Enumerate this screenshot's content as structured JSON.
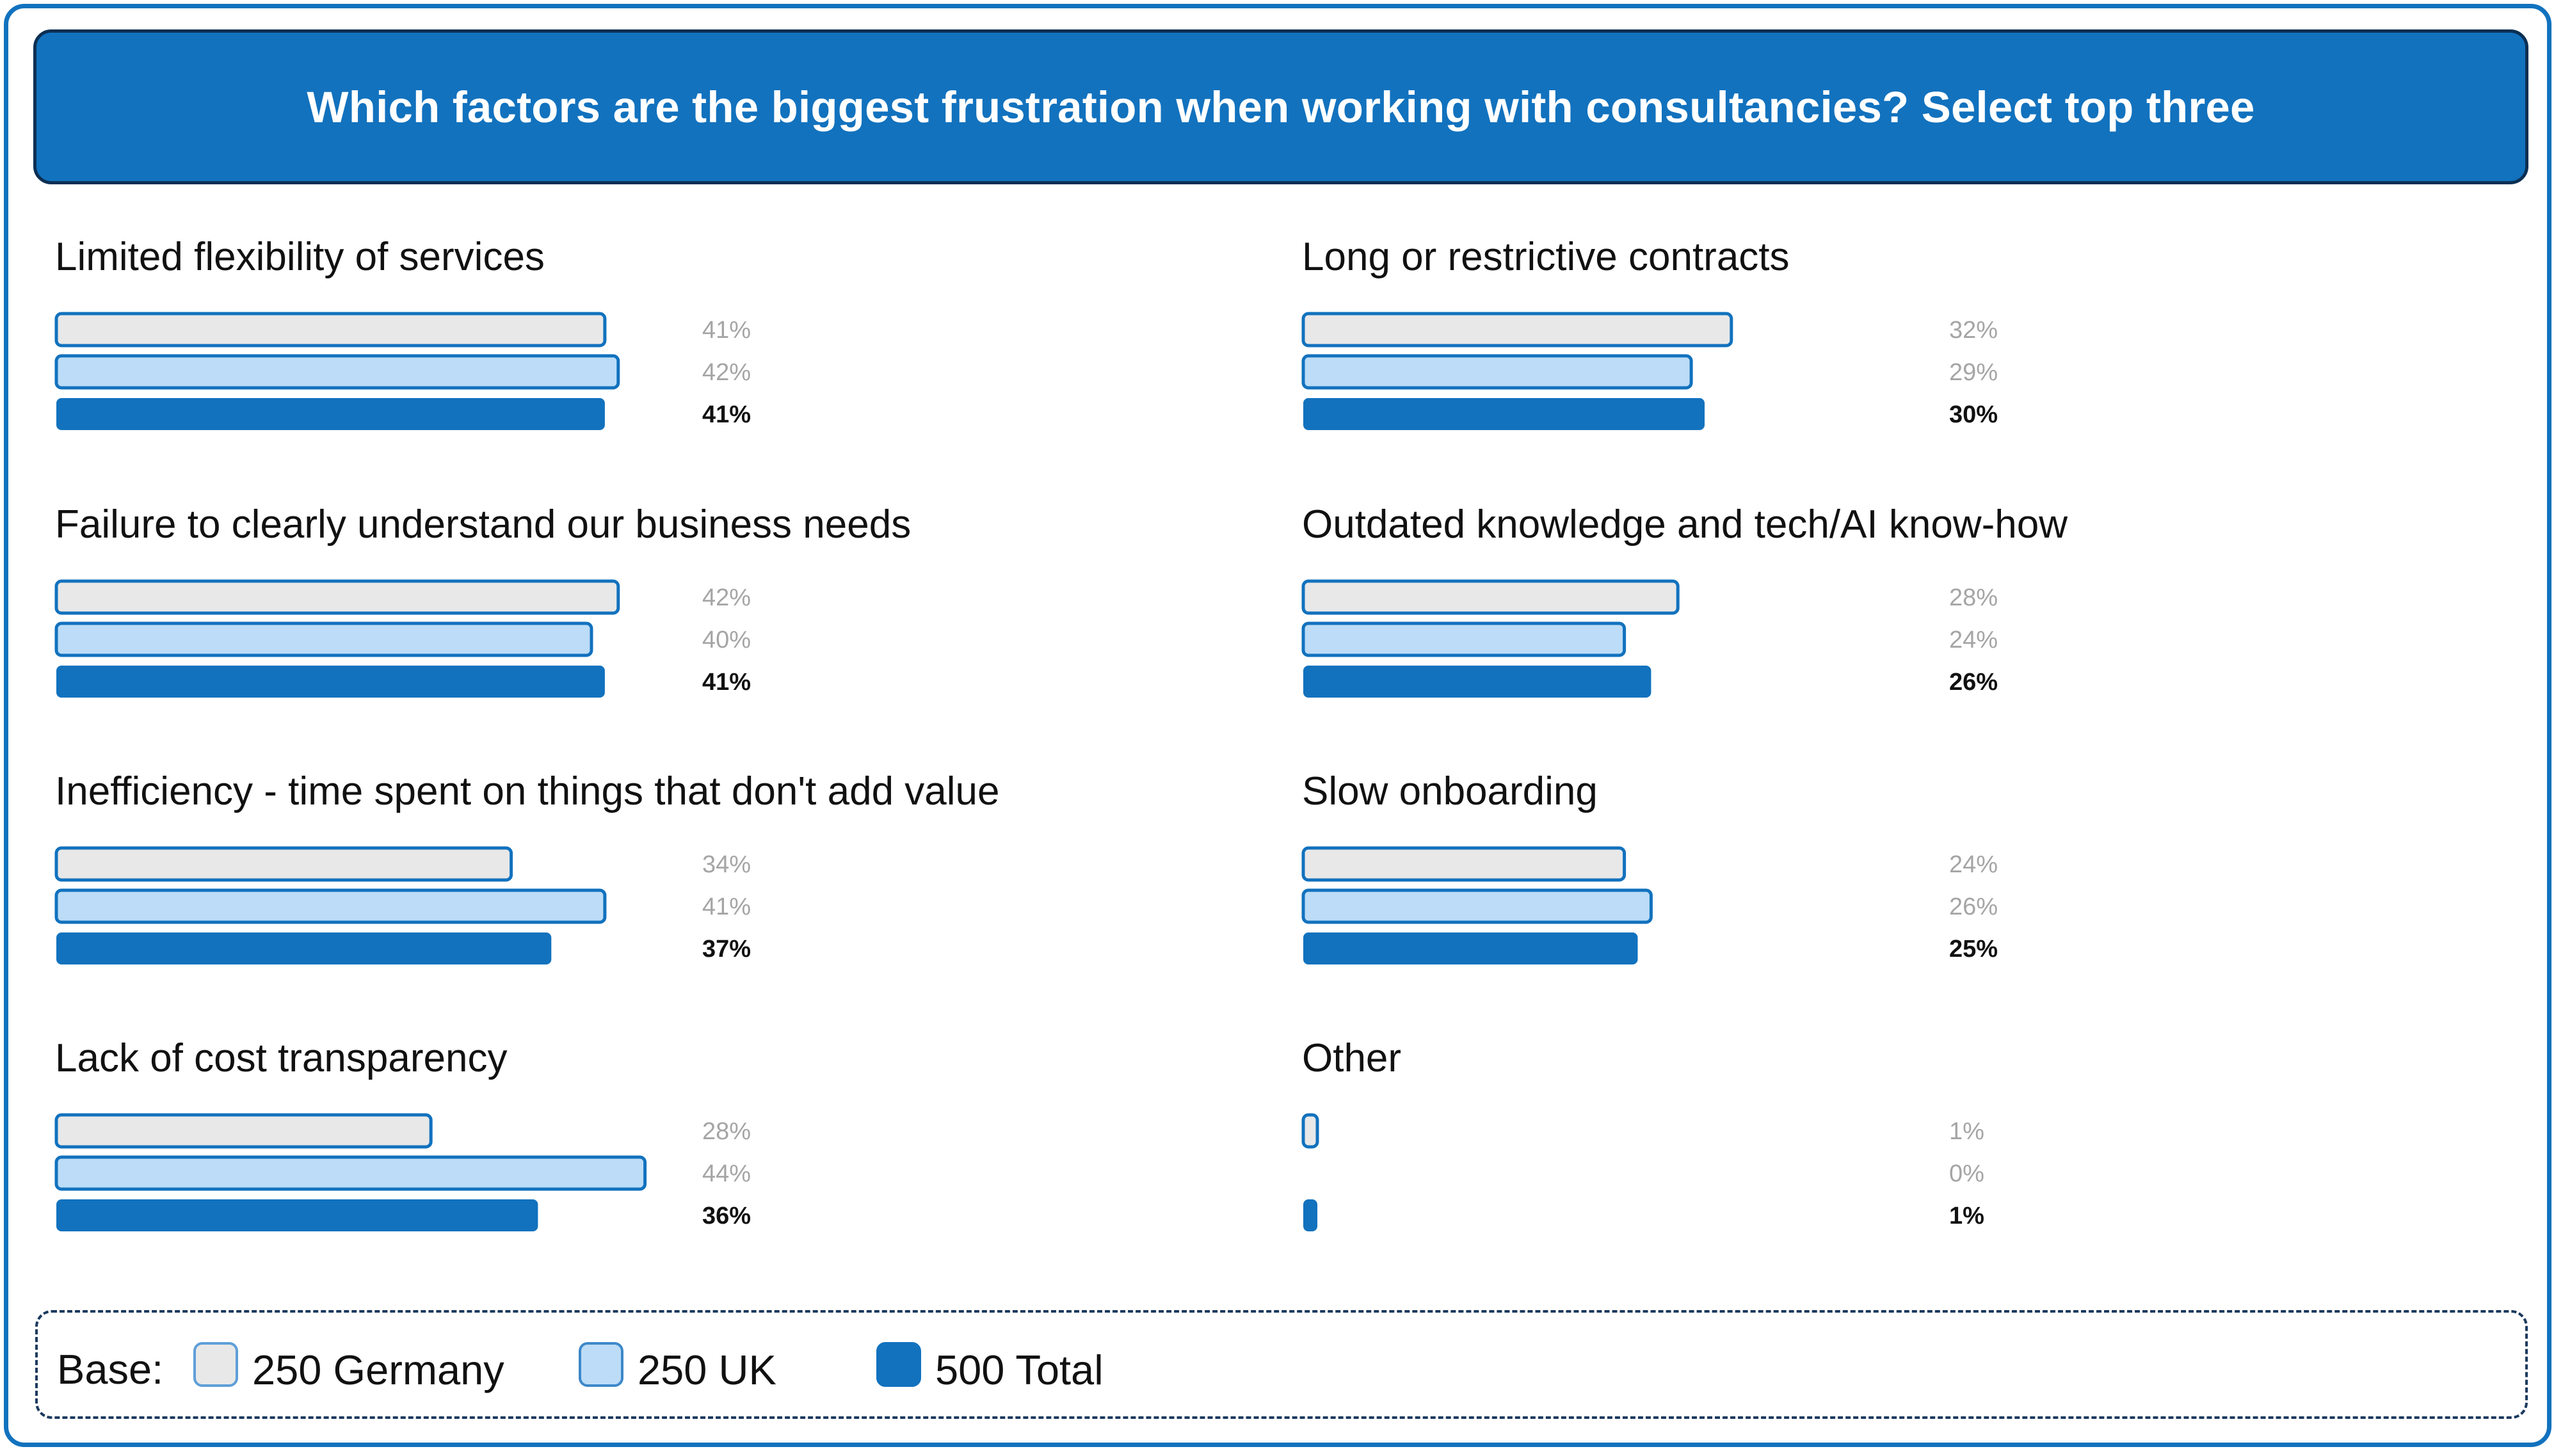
{
  "title": "Which factors are the biggest frustration when working with consultancies? Select top three",
  "legend": {
    "base_label": "Base:",
    "items": [
      {
        "label": "250 Germany",
        "fill": "#e8e8e8",
        "stroke": "#5e9fd8"
      },
      {
        "label": "250 UK",
        "fill": "#bcdcf7",
        "stroke": "#3d88c9"
      },
      {
        "label": "500 Total",
        "fill": "#1272be",
        "stroke": "#1272be"
      }
    ]
  },
  "colors": {
    "accent": "#1272be",
    "title_border": "#0b2f53",
    "germany_fill": "#e8e8e8",
    "uk_fill": "#bcdcf7",
    "total_fill": "#1272be",
    "bar_stroke": "#1272be",
    "muted_label": "#a5a5a5",
    "bold_label": "#111111"
  },
  "chart_data": {
    "type": "bar",
    "orientation": "horizontal",
    "title": "Which factors are the biggest frustration when working with consultancies? Select top three",
    "series_names": [
      "250 Germany",
      "250 UK",
      "500 Total"
    ],
    "unit": "%",
    "panels": [
      {
        "label": "Limited flexibility of services",
        "values": [
          41,
          42,
          41
        ],
        "value_labels": [
          "41%",
          "42%",
          "41%"
        ]
      },
      {
        "label": "Long or restrictive contracts",
        "values": [
          32,
          29,
          30
        ],
        "value_labels": [
          "32%",
          "29%",
          "30%"
        ]
      },
      {
        "label": "Failure to clearly understand our business needs",
        "values": [
          42,
          40,
          41
        ],
        "value_labels": [
          "42%",
          "40%",
          "41%"
        ]
      },
      {
        "label": "Outdated knowledge and tech/AI know-how",
        "values": [
          28,
          24,
          26
        ],
        "value_labels": [
          "28%",
          "24%",
          "26%"
        ]
      },
      {
        "label": "Inefficiency - time spent on things that don't add value",
        "values": [
          34,
          41,
          37
        ],
        "value_labels": [
          "34%",
          "41%",
          "37%"
        ]
      },
      {
        "label": "Slow onboarding",
        "values": [
          24,
          26,
          25
        ],
        "value_labels": [
          "24%",
          "26%",
          "25%"
        ]
      },
      {
        "label": "Lack of cost transparency",
        "values": [
          28,
          44,
          36
        ],
        "value_labels": [
          "28%",
          "44%",
          "36%"
        ]
      },
      {
        "label": "Other",
        "values": [
          1,
          0,
          1
        ],
        "value_labels": [
          "1%",
          "0%",
          "1%"
        ]
      }
    ]
  }
}
